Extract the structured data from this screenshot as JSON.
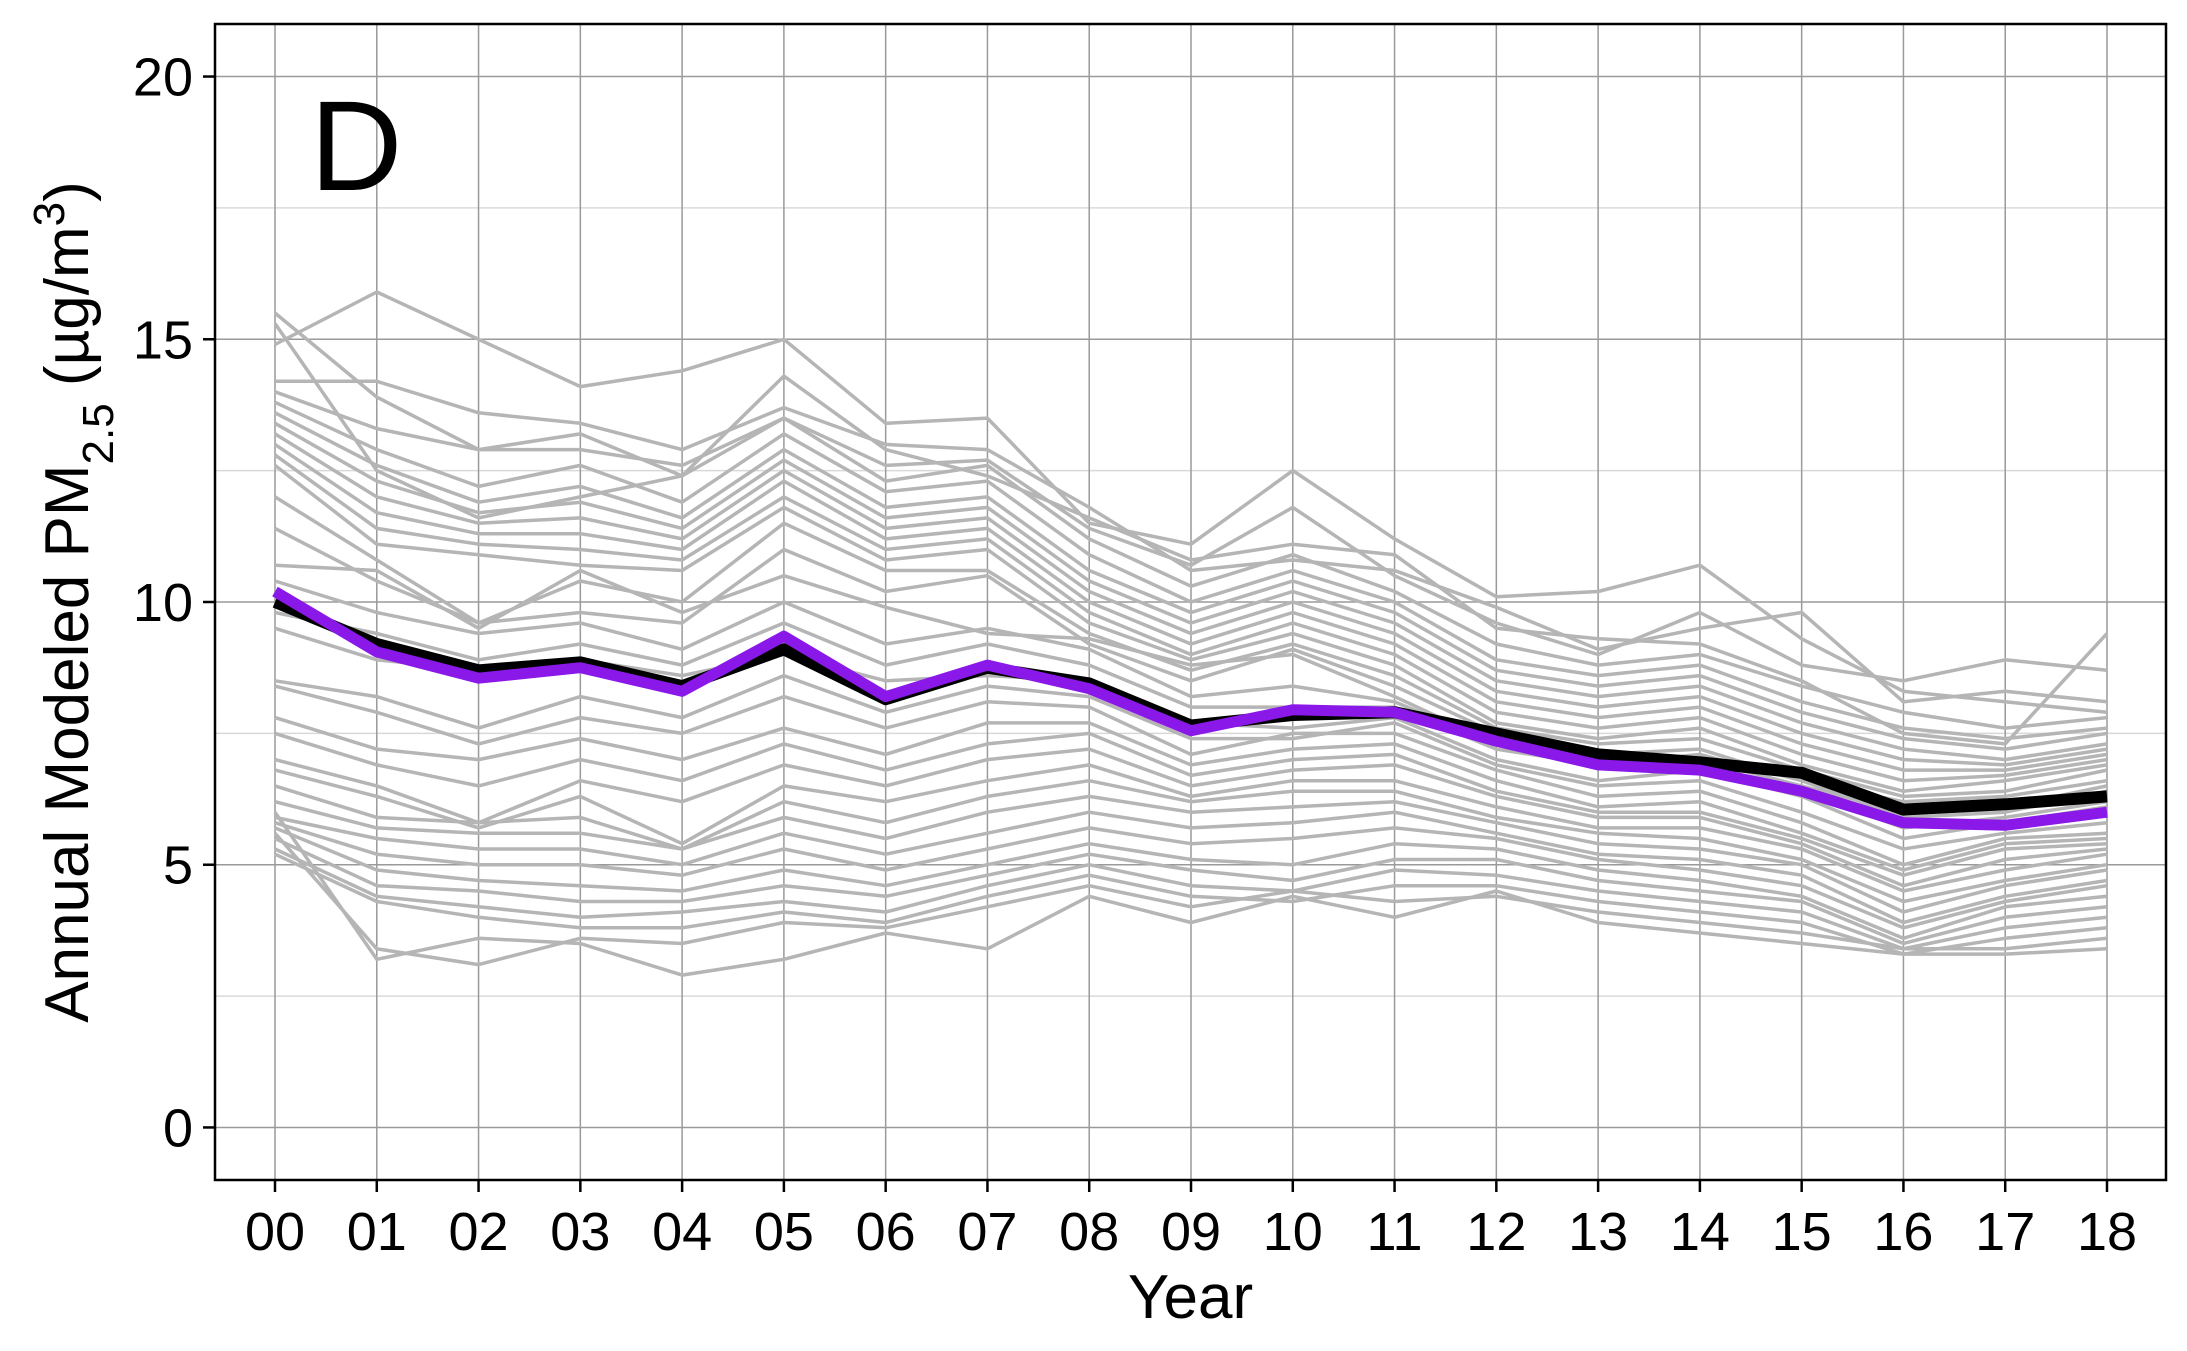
{
  "chart_data": {
    "type": "line",
    "panel_label": "D",
    "xlabel": "Year",
    "ylabel": {
      "prefix": "Annual Modeled PM",
      "subscript": "2.5",
      "unit_open": " (µg/m",
      "superscript": "3",
      "unit_close": ")"
    },
    "categories": [
      "00",
      "01",
      "02",
      "03",
      "04",
      "05",
      "06",
      "07",
      "08",
      "09",
      "10",
      "11",
      "12",
      "13",
      "14",
      "15",
      "16",
      "17",
      "18"
    ],
    "ylim": [
      -1,
      21
    ],
    "yticks": [
      0,
      5,
      10,
      15,
      20
    ],
    "ytick_labels": [
      "0",
      "5",
      "10",
      "15",
      "20"
    ],
    "grid": true,
    "legend": "none",
    "colors": {
      "background_lines": "#b5b5b5",
      "mean_line": "#000000",
      "highlight_line": "#8a18e8",
      "grid_major": "#9a9a9a",
      "grid_minor": "#d9d9d9"
    },
    "highlight_series": [
      10.2,
      9.05,
      8.55,
      8.75,
      8.3,
      9.35,
      8.2,
      8.8,
      8.35,
      7.55,
      7.95,
      7.9,
      7.35,
      6.9,
      6.8,
      6.4,
      5.8,
      5.75,
      6.0
    ],
    "mean_series": [
      10.0,
      9.2,
      8.7,
      8.85,
      8.4,
      9.1,
      8.15,
      8.75,
      8.45,
      7.65,
      7.85,
      7.9,
      7.5,
      7.1,
      6.95,
      6.75,
      6.05,
      6.15,
      6.3
    ],
    "background_series": [
      [
        15.5,
        13.9,
        12.9,
        12.9,
        12.6,
        13.5,
        12.6,
        12.7,
        11.4,
        10.7,
        11.8,
        10.5,
        9.6,
        9.0,
        9.8,
        8.8,
        8.5,
        8.9,
        8.7
      ],
      [
        14.9,
        15.9,
        15.0,
        14.1,
        14.4,
        15.0,
        13.4,
        13.5,
        11.5,
        11.1,
        12.5,
        11.2,
        10.1,
        10.2,
        10.7,
        9.3,
        8.3,
        8.1,
        7.9
      ],
      [
        15.3,
        12.5,
        11.6,
        12.0,
        12.4,
        14.3,
        12.9,
        12.4,
        11.6,
        10.8,
        11.1,
        10.9,
        9.5,
        9.3,
        9.2,
        8.5,
        7.5,
        7.3,
        9.4
      ],
      [
        14.2,
        14.2,
        13.6,
        13.4,
        12.9,
        13.7,
        13.0,
        12.9,
        11.8,
        10.6,
        10.8,
        10.6,
        9.9,
        9.1,
        9.5,
        9.8,
        8.1,
        8.3,
        8.1
      ],
      [
        14.0,
        13.3,
        12.9,
        13.2,
        12.4,
        13.5,
        12.3,
        12.6,
        11.2,
        10.3,
        10.9,
        10.2,
        9.2,
        8.8,
        9.0,
        8.4,
        7.9,
        7.6,
        7.8
      ],
      [
        13.8,
        12.9,
        12.2,
        12.6,
        11.9,
        13.2,
        12.1,
        12.3,
        10.9,
        10.0,
        10.6,
        10.0,
        8.9,
        8.6,
        8.8,
        8.1,
        7.6,
        7.4,
        7.6
      ],
      [
        13.6,
        12.6,
        11.9,
        12.2,
        11.6,
        12.9,
        11.8,
        12.0,
        10.6,
        9.8,
        10.4,
        9.8,
        8.7,
        8.4,
        8.6,
        7.9,
        7.4,
        7.2,
        7.5
      ],
      [
        13.4,
        12.3,
        11.7,
        11.9,
        11.4,
        12.7,
        11.6,
        11.8,
        10.4,
        9.6,
        10.2,
        9.6,
        8.5,
        8.2,
        8.4,
        7.7,
        7.2,
        7.0,
        7.3
      ],
      [
        13.2,
        12.0,
        11.5,
        11.6,
        11.2,
        12.5,
        11.4,
        11.6,
        10.2,
        9.4,
        10.0,
        9.4,
        8.3,
        8.0,
        8.2,
        7.5,
        7.0,
        6.9,
        7.2
      ],
      [
        13.0,
        11.7,
        11.3,
        11.3,
        11.0,
        12.3,
        11.2,
        11.4,
        10.0,
        9.2,
        9.8,
        9.2,
        8.1,
        7.8,
        8.0,
        7.3,
        6.8,
        6.8,
        7.1
      ],
      [
        12.8,
        11.4,
        11.1,
        11.0,
        10.8,
        12.0,
        11.0,
        11.2,
        9.8,
        9.0,
        9.6,
        9.0,
        7.9,
        7.6,
        7.8,
        7.1,
        6.6,
        6.7,
        7.0
      ],
      [
        12.6,
        11.1,
        10.9,
        10.7,
        10.6,
        11.8,
        10.8,
        11.0,
        9.6,
        8.9,
        9.4,
        8.8,
        7.7,
        7.4,
        7.6,
        6.9,
        6.4,
        6.6,
        6.9
      ],
      [
        12.0,
        10.8,
        9.6,
        10.4,
        10.0,
        11.5,
        10.6,
        10.6,
        9.4,
        8.7,
        9.2,
        8.6,
        7.6,
        7.3,
        7.4,
        6.8,
        6.3,
        6.4,
        6.8
      ],
      [
        11.4,
        10.4,
        9.6,
        9.8,
        9.6,
        11.0,
        10.2,
        10.5,
        9.2,
        8.5,
        9.1,
        8.4,
        7.5,
        7.1,
        7.2,
        6.6,
        6.2,
        6.3,
        6.6
      ],
      [
        10.7,
        10.6,
        9.5,
        10.6,
        9.8,
        10.5,
        9.9,
        9.4,
        9.3,
        8.8,
        9.0,
        8.2,
        7.3,
        7.0,
        7.0,
        6.5,
        6.0,
        6.1,
        6.5
      ],
      [
        10.4,
        9.8,
        9.4,
        9.6,
        9.1,
        10.0,
        9.2,
        9.5,
        9.1,
        8.2,
        8.4,
        8.1,
        7.3,
        6.9,
        7.1,
        6.6,
        5.9,
        6.0,
        6.4
      ],
      [
        9.8,
        9.4,
        8.9,
        9.2,
        8.8,
        9.6,
        8.8,
        9.2,
        8.8,
        8.0,
        8.0,
        8.0,
        7.2,
        6.9,
        6.9,
        6.4,
        5.7,
        5.9,
        6.2
      ],
      [
        9.5,
        8.9,
        8.7,
        8.9,
        8.6,
        9.0,
        8.5,
        8.6,
        8.5,
        7.7,
        7.6,
        7.8,
        7.0,
        6.6,
        6.8,
        6.3,
        5.5,
        5.8,
        6.1
      ],
      [
        8.5,
        8.2,
        7.6,
        8.2,
        7.8,
        8.6,
        7.9,
        8.4,
        8.2,
        7.4,
        7.4,
        7.7,
        6.9,
        6.5,
        6.6,
        6.0,
        5.3,
        5.6,
        5.8
      ],
      [
        8.4,
        7.9,
        7.3,
        7.8,
        7.5,
        8.2,
        7.6,
        8.1,
        8.0,
        7.1,
        7.5,
        7.5,
        6.8,
        6.3,
        6.4,
        5.8,
        5.0,
        5.5,
        5.6
      ],
      [
        7.8,
        7.2,
        7.0,
        7.4,
        7.0,
        7.6,
        7.1,
        7.7,
        7.7,
        6.9,
        7.2,
        7.3,
        6.6,
        6.1,
        6.2,
        5.6,
        4.9,
        5.4,
        5.5
      ],
      [
        7.5,
        6.9,
        6.5,
        7.0,
        6.6,
        7.3,
        6.8,
        7.3,
        7.5,
        6.7,
        7.0,
        7.1,
        6.4,
        6.0,
        6.0,
        5.5,
        4.8,
        5.3,
        5.4
      ],
      [
        7.0,
        6.5,
        5.8,
        6.6,
        6.2,
        6.9,
        6.5,
        7.0,
        7.2,
        6.5,
        6.8,
        6.9,
        6.3,
        5.9,
        5.9,
        5.4,
        4.6,
        5.1,
        5.3
      ],
      [
        6.8,
        6.3,
        5.7,
        6.3,
        5.4,
        6.5,
        6.2,
        6.6,
        6.9,
        6.3,
        6.6,
        6.6,
        6.1,
        5.7,
        5.7,
        5.3,
        4.5,
        4.9,
        5.2
      ],
      [
        6.5,
        5.9,
        5.8,
        5.9,
        5.3,
        6.2,
        5.8,
        6.3,
        6.6,
        6.2,
        6.4,
        6.4,
        5.9,
        5.6,
        5.5,
        5.1,
        4.3,
        4.7,
        5.0
      ],
      [
        6.2,
        5.7,
        5.6,
        5.6,
        5.3,
        5.9,
        5.5,
        6.0,
        6.3,
        6.0,
        6.1,
        6.2,
        5.8,
        5.4,
        5.3,
        5.0,
        4.1,
        4.6,
        4.9
      ],
      [
        5.9,
        5.5,
        5.3,
        5.3,
        5.0,
        5.6,
        5.2,
        5.6,
        6.0,
        5.7,
        5.8,
        6.0,
        5.6,
        5.2,
        5.1,
        4.8,
        3.9,
        4.4,
        4.7
      ],
      [
        5.8,
        5.2,
        5.0,
        5.0,
        4.8,
        5.3,
        4.9,
        5.3,
        5.7,
        5.4,
        5.5,
        5.7,
        5.5,
        5.1,
        4.9,
        4.6,
        3.8,
        4.3,
        4.6
      ],
      [
        5.7,
        4.9,
        4.7,
        4.6,
        4.5,
        4.9,
        4.6,
        5.0,
        5.4,
        5.1,
        5.0,
        5.4,
        5.3,
        4.9,
        4.7,
        4.4,
        3.6,
        4.2,
        4.4
      ],
      [
        5.5,
        4.6,
        4.5,
        4.3,
        4.3,
        4.6,
        4.4,
        4.8,
        5.2,
        4.9,
        4.7,
        5.1,
        5.1,
        4.7,
        4.5,
        4.3,
        3.5,
        4.0,
        4.2
      ],
      [
        5.3,
        4.4,
        4.2,
        4.0,
        4.1,
        4.3,
        4.1,
        4.6,
        5.0,
        4.6,
        4.5,
        4.9,
        4.8,
        4.5,
        4.3,
        4.1,
        3.4,
        3.8,
        4.0
      ],
      [
        5.2,
        4.3,
        4.0,
        3.8,
        3.8,
        4.1,
        3.9,
        4.4,
        4.8,
        4.4,
        4.3,
        4.6,
        4.6,
        4.3,
        4.1,
        3.9,
        3.3,
        3.6,
        3.8
      ],
      [
        5.6,
        3.4,
        3.1,
        3.6,
        3.5,
        3.9,
        3.8,
        4.2,
        4.6,
        4.2,
        4.5,
        4.3,
        4.4,
        4.1,
        3.9,
        3.7,
        3.4,
        3.4,
        3.6
      ],
      [
        6.0,
        3.2,
        3.6,
        3.5,
        2.9,
        3.2,
        3.7,
        3.4,
        4.4,
        3.9,
        4.4,
        4.0,
        4.5,
        3.9,
        3.7,
        3.5,
        3.3,
        3.3,
        3.4
      ]
    ]
  }
}
